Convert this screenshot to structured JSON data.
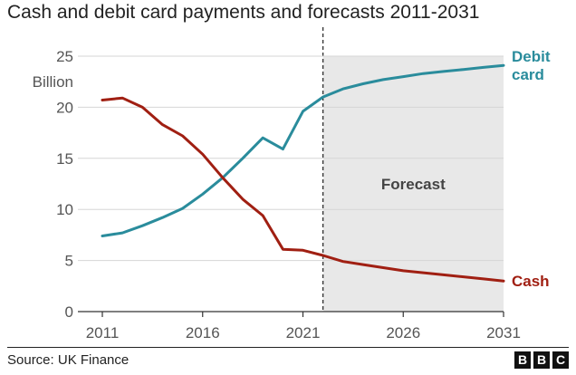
{
  "chart_data": {
    "type": "line",
    "title": "Cash and debit card payments and forecasts 2011-2031",
    "ylabel": "Billion",
    "xlabel": "",
    "xlim": [
      2011,
      2031
    ],
    "ylim": [
      0,
      25
    ],
    "x_ticks": [
      "2011",
      "2016",
      "2021",
      "2026",
      "2031"
    ],
    "y_ticks": [
      "0",
      "5",
      "10",
      "15",
      "20",
      "25"
    ],
    "grid": true,
    "forecast_start": 2022,
    "forecast_label": "Forecast",
    "source": "Source: UK Finance",
    "series": [
      {
        "name": "Debit card",
        "label_lines": [
          "Debit",
          "card"
        ],
        "color": "#2a8c9c",
        "x": [
          2011,
          2012,
          2013,
          2014,
          2015,
          2016,
          2017,
          2018,
          2019,
          2020,
          2021,
          2022,
          2023,
          2024,
          2025,
          2026,
          2027,
          2028,
          2029,
          2030,
          2031
        ],
        "values": [
          7.4,
          7.7,
          8.4,
          9.2,
          10.1,
          11.5,
          13.1,
          15.0,
          17.0,
          15.9,
          19.6,
          21.0,
          21.8,
          22.3,
          22.7,
          23.0,
          23.3,
          23.5,
          23.7,
          23.9,
          24.1
        ]
      },
      {
        "name": "Cash",
        "label_lines": [
          "Cash"
        ],
        "color": "#a01f12",
        "x": [
          2011,
          2012,
          2013,
          2014,
          2015,
          2016,
          2017,
          2018,
          2019,
          2020,
          2021,
          2022,
          2023,
          2024,
          2025,
          2026,
          2027,
          2028,
          2029,
          2030,
          2031
        ],
        "values": [
          20.7,
          20.9,
          20.0,
          18.3,
          17.2,
          15.4,
          13.1,
          11.0,
          9.4,
          6.1,
          6.0,
          5.5,
          4.9,
          4.6,
          4.3,
          4.0,
          3.8,
          3.6,
          3.4,
          3.2,
          3.0
        ]
      }
    ]
  },
  "brand": {
    "letters": [
      "B",
      "B",
      "C"
    ]
  }
}
